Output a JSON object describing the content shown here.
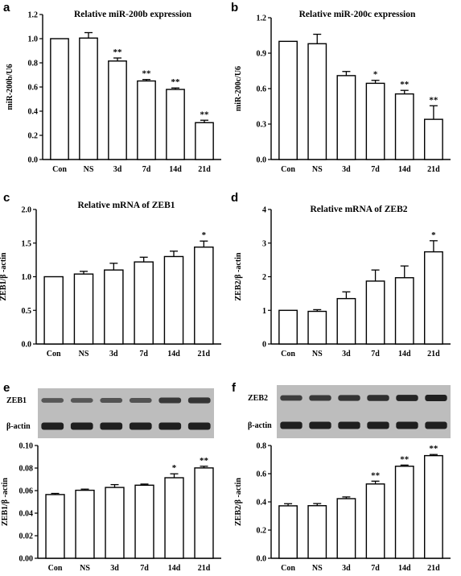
{
  "colors": {
    "bar_fill": "#ffffff",
    "stroke": "#000000",
    "blot_bg": "#bdbdbd",
    "band": "#1f1f1f"
  },
  "chart_data": [
    {
      "id": "a",
      "panel_label": "a",
      "type": "bar",
      "title": "Relative miR-200b expression",
      "ylabel": "miR-200b/U6",
      "categories": [
        "Con",
        "NS",
        "3d",
        "7d",
        "14d",
        "21d"
      ],
      "values": [
        1.0,
        1.005,
        0.815,
        0.65,
        0.58,
        0.305
      ],
      "errors": [
        0,
        0.045,
        0.025,
        0.012,
        0.012,
        0.02
      ],
      "annotations": [
        "",
        "",
        "**",
        "**",
        "**",
        "**"
      ],
      "ylim": [
        0,
        1.2
      ],
      "yticks": [
        "0.0",
        "0.2",
        "0.4",
        "0.6",
        "0.8",
        "1.0",
        "1.2"
      ]
    },
    {
      "id": "b",
      "panel_label": "b",
      "type": "bar",
      "title": "Relative miR-200c expression",
      "ylabel": "miR-200c/U6",
      "categories": [
        "Con",
        "NS",
        "3d",
        "7d",
        "14d",
        "21d"
      ],
      "values": [
        1.0,
        0.98,
        0.71,
        0.645,
        0.555,
        0.34
      ],
      "errors": [
        0,
        0.08,
        0.035,
        0.025,
        0.03,
        0.115
      ],
      "annotations": [
        "",
        "",
        "",
        "*",
        "**",
        "**"
      ],
      "ylim": [
        0,
        1.2
      ],
      "yticks": [
        "0.0",
        "0.3",
        "0.6",
        "0.9",
        "1.2"
      ]
    },
    {
      "id": "c",
      "panel_label": "c",
      "type": "bar",
      "title": "Relative mRNA of ZEB1",
      "ylabel": "ZEB1/β -actin",
      "categories": [
        "Con",
        "NS",
        "3d",
        "7d",
        "14d",
        "21d"
      ],
      "values": [
        1.0,
        1.04,
        1.1,
        1.22,
        1.3,
        1.44
      ],
      "errors": [
        0,
        0.04,
        0.1,
        0.07,
        0.08,
        0.09
      ],
      "annotations": [
        "",
        "",
        "",
        "",
        "",
        "*"
      ],
      "ylim": [
        0,
        2.0
      ],
      "yticks": [
        "0.0",
        "0.5",
        "1.0",
        "1.5",
        "2.0"
      ]
    },
    {
      "id": "d",
      "panel_label": "d",
      "type": "bar",
      "title": "Relative mRNA of ZEB2",
      "ylabel": "ZEB2/β -actin",
      "categories": [
        "Con",
        "NS",
        "3d",
        "7d",
        "14d",
        "21d"
      ],
      "values": [
        1.0,
        0.97,
        1.35,
        1.87,
        1.97,
        2.74
      ],
      "errors": [
        0,
        0.05,
        0.2,
        0.33,
        0.35,
        0.33
      ],
      "annotations": [
        "",
        "",
        "",
        "",
        "",
        "*"
      ],
      "ylim": [
        0,
        4
      ],
      "yticks": [
        "0",
        "1",
        "2",
        "3",
        "4"
      ]
    },
    {
      "id": "e",
      "panel_label": "e",
      "type": "bar",
      "title": "",
      "ylabel": "ZEB1/β -actin",
      "categories": [
        "Con",
        "NS",
        "3d",
        "7d",
        "14d",
        "21d"
      ],
      "values": [
        0.0565,
        0.0603,
        0.0628,
        0.0648,
        0.0714,
        0.0801
      ],
      "errors": [
        0.001,
        0.001,
        0.0025,
        0.001,
        0.0035,
        0.0015
      ],
      "annotations": [
        "",
        "",
        "",
        "",
        "*",
        "**"
      ],
      "ylim": [
        0,
        0.1
      ],
      "yticks": [
        "0.00",
        "0.02",
        "0.04",
        "0.06",
        "0.08",
        "0.10"
      ],
      "blot": {
        "labels": [
          "ZEB1",
          "β-actin"
        ],
        "intensity": [
          [
            0.45,
            0.45,
            0.5,
            0.5,
            0.75,
            0.8
          ],
          [
            1,
            1,
            1,
            1,
            1,
            1
          ]
        ]
      }
    },
    {
      "id": "f",
      "panel_label": "f",
      "type": "bar",
      "title": "",
      "ylabel": "ZEB2/β -actin",
      "categories": [
        "Con",
        "NS",
        "3d",
        "7d",
        "14d",
        "21d"
      ],
      "values": [
        0.372,
        0.373,
        0.423,
        0.527,
        0.653,
        0.728
      ],
      "errors": [
        0.015,
        0.015,
        0.012,
        0.02,
        0.008,
        0.008
      ],
      "annotations": [
        "",
        "",
        "",
        "**",
        "**",
        "**"
      ],
      "ylim": [
        0,
        0.8
      ],
      "yticks": [
        "0.0",
        "0.2",
        "0.4",
        "0.6",
        "0.8"
      ],
      "blot": {
        "labels": [
          "ZEB2",
          "β-actin"
        ],
        "intensity": [
          [
            0.7,
            0.75,
            0.8,
            0.85,
            0.95,
            1.0
          ],
          [
            1,
            1,
            1,
            1,
            1,
            1
          ]
        ]
      }
    }
  ]
}
